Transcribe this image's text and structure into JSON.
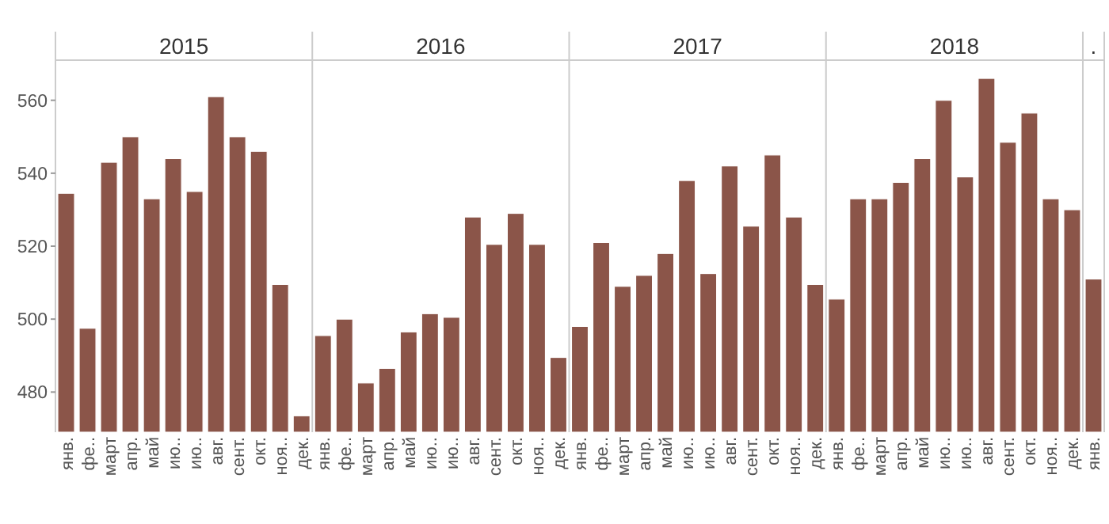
{
  "chart_data": {
    "type": "bar",
    "categories": [
      "янв.",
      "фе..",
      "март",
      "апр.",
      "май",
      "ию..",
      "ию..",
      "авг.",
      "сент.",
      "окт.",
      "ноя..",
      "дек.",
      "янв.",
      "фе..",
      "март",
      "апр.",
      "май",
      "ию..",
      "ию..",
      "авг.",
      "сент.",
      "окт.",
      "ноя..",
      "дек.",
      "янв.",
      "фе..",
      "март",
      "апр.",
      "май",
      "ию..",
      "ию..",
      "авг.",
      "сент.",
      "окт.",
      "ноя..",
      "дек.",
      "янв.",
      "фе..",
      "март",
      "апр.",
      "май",
      "ию..",
      "ию..",
      "авг.",
      "сент.",
      "окт.",
      "ноя..",
      "дек.",
      "янв."
    ],
    "values": [
      534.5,
      497.5,
      543,
      550,
      533,
      544,
      535,
      561,
      550,
      546,
      509.5,
      473.5,
      495.5,
      500,
      482.5,
      486.5,
      496.5,
      501.5,
      500.5,
      528,
      520.5,
      529,
      520.5,
      489.5,
      498,
      521,
      509,
      512,
      518,
      538,
      512.5,
      542,
      525.5,
      545,
      528,
      509.5,
      505.5,
      533,
      533,
      537.5,
      544,
      560,
      539,
      566,
      548.5,
      556.5,
      533,
      530,
      511
    ],
    "color": "#8b5549",
    "ylim": [
      469,
      571
    ],
    "yticks": [
      480,
      500,
      520,
      540,
      560
    ],
    "grid": false,
    "annotations": [
      "2015",
      "2016",
      "2017",
      "2018",
      "."
    ]
  }
}
